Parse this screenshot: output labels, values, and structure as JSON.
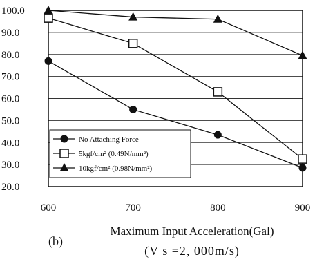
{
  "chart_data": {
    "type": "line",
    "panel_label": "(b)",
    "xlabel": "Maximum Input Acceleration(Gal)",
    "subtitle": "(V s =2, 000m/s)",
    "x": [
      600,
      700,
      800,
      900
    ],
    "x_tick_labels": [
      "600",
      "700",
      "800",
      "900"
    ],
    "xlim": [
      600,
      900
    ],
    "ylim": [
      20,
      100
    ],
    "y_ticks": [
      20,
      30,
      40,
      50,
      60,
      70,
      80,
      90,
      100
    ],
    "y_tick_labels": [
      "20.0",
      "30.0",
      "40.0",
      "50.0",
      "60.0",
      "70.0",
      "80.0",
      "90.0",
      "100.0"
    ],
    "grid": "horizontal",
    "legend_position": "bottom-left",
    "series": [
      {
        "name": "No Attaching Force",
        "marker": "filled-circle",
        "values": [
          77,
          55,
          43.5,
          28.5
        ]
      },
      {
        "name": "5kgf/cm² (0.49N/mm²)",
        "marker": "open-square",
        "values": [
          96.5,
          85,
          63,
          32.5
        ]
      },
      {
        "name": "10kgf/cm² (0.98N/mm²)",
        "marker": "filled-triangle",
        "values": [
          100,
          97,
          96,
          79.5
        ]
      }
    ]
  }
}
